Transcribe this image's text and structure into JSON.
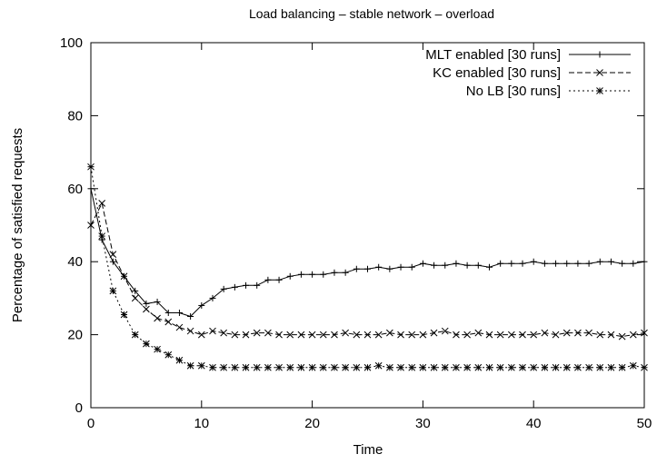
{
  "chart_data": {
    "type": "line",
    "title": "Load balancing – stable network – overload",
    "xlabel": "Time",
    "ylabel": "Percentage of satisfied requests",
    "xlim": [
      0,
      50
    ],
    "ylim": [
      0,
      100
    ],
    "xticks": [
      0,
      10,
      20,
      30,
      40,
      50
    ],
    "yticks": [
      0,
      20,
      40,
      60,
      80,
      100
    ],
    "grid": false,
    "legend_position": "top-right",
    "series": [
      {
        "name": "MLT enabled [30 runs]",
        "style": "solid",
        "marker": "plus",
        "x": [
          0,
          1,
          2,
          3,
          4,
          5,
          6,
          7,
          8,
          9,
          10,
          11,
          12,
          13,
          14,
          15,
          16,
          17,
          18,
          19,
          20,
          21,
          22,
          23,
          24,
          25,
          26,
          27,
          28,
          29,
          30,
          31,
          32,
          33,
          34,
          35,
          36,
          37,
          38,
          39,
          40,
          41,
          42,
          43,
          44,
          45,
          46,
          47,
          48,
          49,
          50
        ],
        "y": [
          60,
          46,
          40,
          36,
          32,
          28.5,
          29,
          26,
          26,
          25,
          28,
          30,
          32.5,
          33,
          33.5,
          33.5,
          35,
          35,
          36,
          36.5,
          36.5,
          36.5,
          37,
          37,
          38,
          38,
          38.5,
          38,
          38.5,
          38.5,
          39.5,
          39,
          39,
          39.5,
          39,
          39,
          38.5,
          39.5,
          39.5,
          39.5,
          40,
          39.5,
          39.5,
          39.5,
          39.5,
          39.5,
          40,
          40,
          39.5,
          39.5,
          40
        ]
      },
      {
        "name": "KC enabled [30 runs]",
        "style": "dashed",
        "marker": "x",
        "x": [
          0,
          1,
          2,
          3,
          4,
          5,
          6,
          7,
          8,
          9,
          10,
          11,
          12,
          13,
          14,
          15,
          16,
          17,
          18,
          19,
          20,
          21,
          22,
          23,
          24,
          25,
          26,
          27,
          28,
          29,
          30,
          31,
          32,
          33,
          34,
          35,
          36,
          37,
          38,
          39,
          40,
          41,
          42,
          43,
          44,
          45,
          46,
          47,
          48,
          49,
          50
        ],
        "y": [
          50,
          56,
          42,
          36,
          30,
          27,
          24.5,
          23.5,
          22,
          21,
          20,
          21,
          20.5,
          20,
          20,
          20.5,
          20.5,
          20,
          20,
          20,
          20,
          20,
          20,
          20.5,
          20,
          20,
          20,
          20.5,
          20,
          20,
          20,
          20.5,
          21,
          20,
          20,
          20.5,
          20,
          20,
          20,
          20,
          20,
          20.5,
          20,
          20.5,
          20.5,
          20.5,
          20,
          20,
          19.5,
          20,
          20.5
        ]
      },
      {
        "name": "No LB [30 runs]",
        "style": "dotted",
        "marker": "star",
        "x": [
          0,
          1,
          2,
          3,
          4,
          5,
          6,
          7,
          8,
          9,
          10,
          11,
          12,
          13,
          14,
          15,
          16,
          17,
          18,
          19,
          20,
          21,
          22,
          23,
          24,
          25,
          26,
          27,
          28,
          29,
          30,
          31,
          32,
          33,
          34,
          35,
          36,
          37,
          38,
          39,
          40,
          41,
          42,
          43,
          44,
          45,
          46,
          47,
          48,
          49,
          50
        ],
        "y": [
          66,
          47,
          32,
          25.5,
          20,
          17.5,
          16,
          14.5,
          13,
          11.5,
          11.5,
          11,
          11,
          11,
          11,
          11,
          11,
          11,
          11,
          11,
          11,
          11,
          11,
          11,
          11,
          11,
          11.5,
          11,
          11,
          11,
          11,
          11,
          11,
          11,
          11,
          11,
          11,
          11,
          11,
          11,
          11,
          11,
          11,
          11,
          11,
          11,
          11,
          11,
          11,
          11.5,
          11
        ]
      }
    ]
  }
}
